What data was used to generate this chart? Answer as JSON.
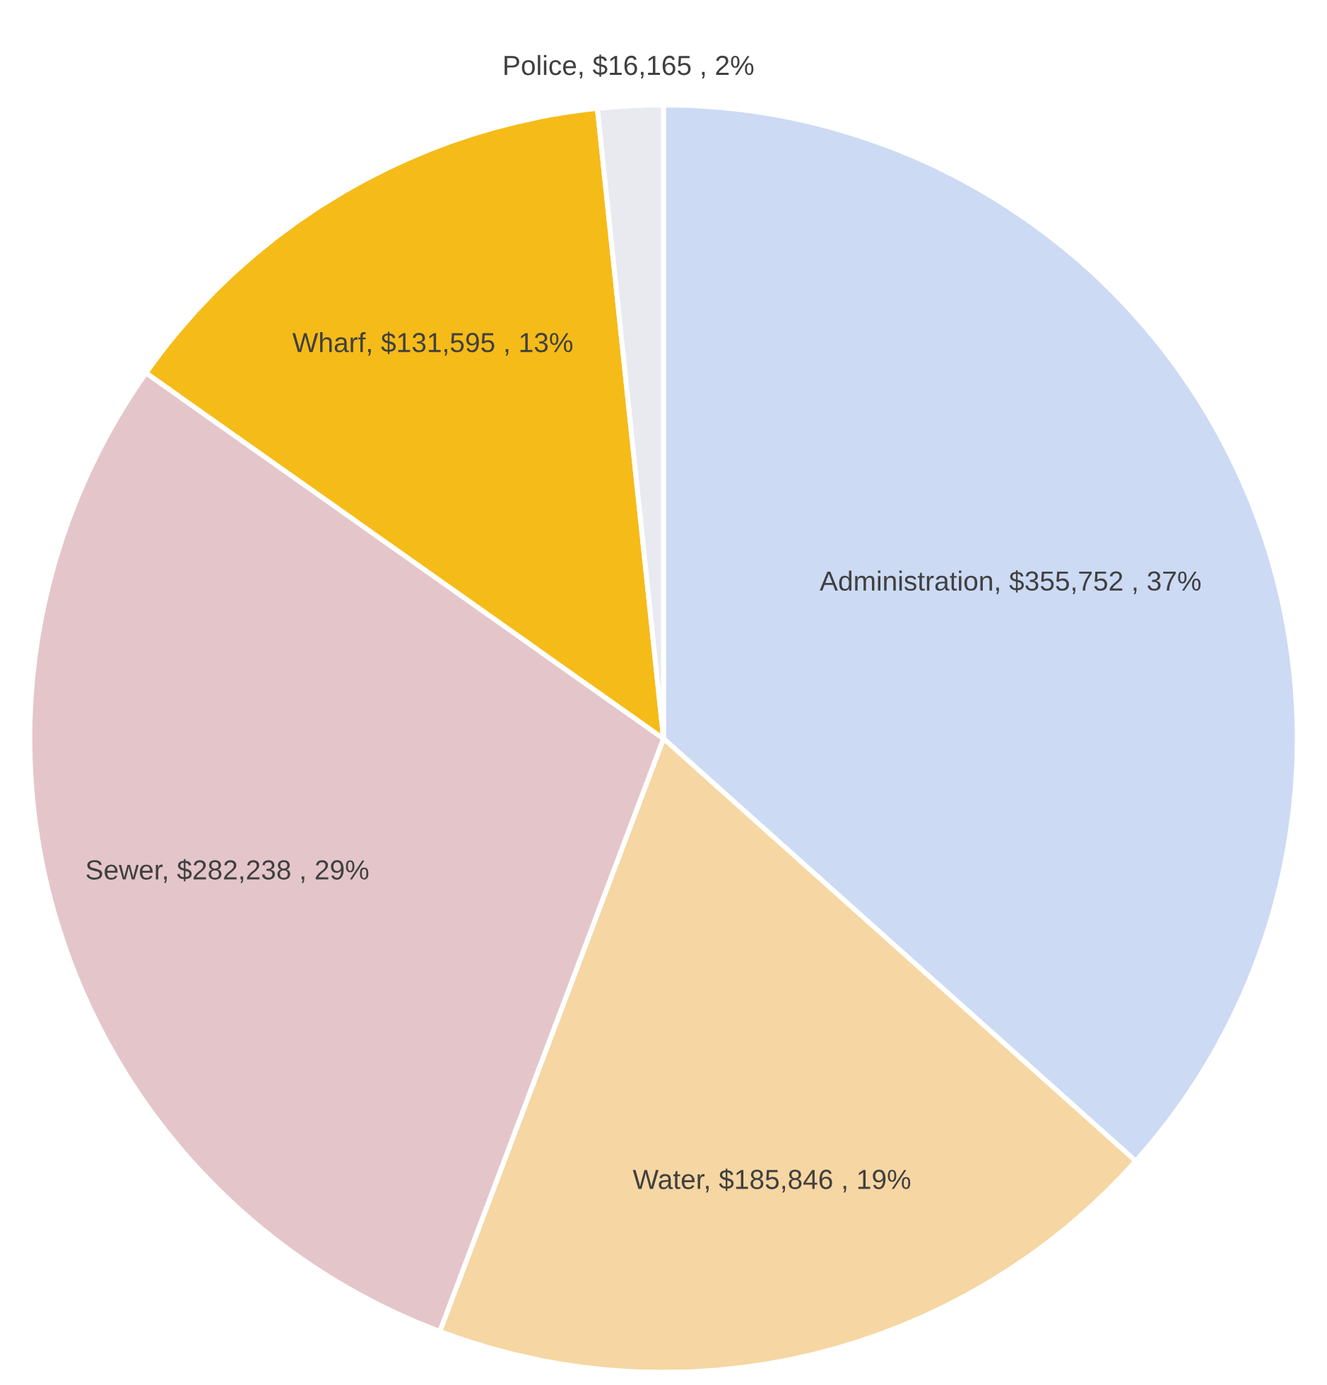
{
  "chart_data": {
    "type": "pie",
    "categories": [
      "Administration",
      "Water",
      "Sewer",
      "Wharf",
      "Police"
    ],
    "values": [
      355752,
      185846,
      282238,
      131595,
      16165
    ],
    "colors": [
      "#ccdaf4",
      "#f6d6a2",
      "#e4c6ca",
      "#f5bb18",
      "#e8eaf0"
    ],
    "value_labels": [
      "$355,752 , 37%",
      "$185,846 , 19%",
      "$282,238 , 29%",
      "$131,595 , 13%",
      "$16,165 , 2%"
    ]
  }
}
